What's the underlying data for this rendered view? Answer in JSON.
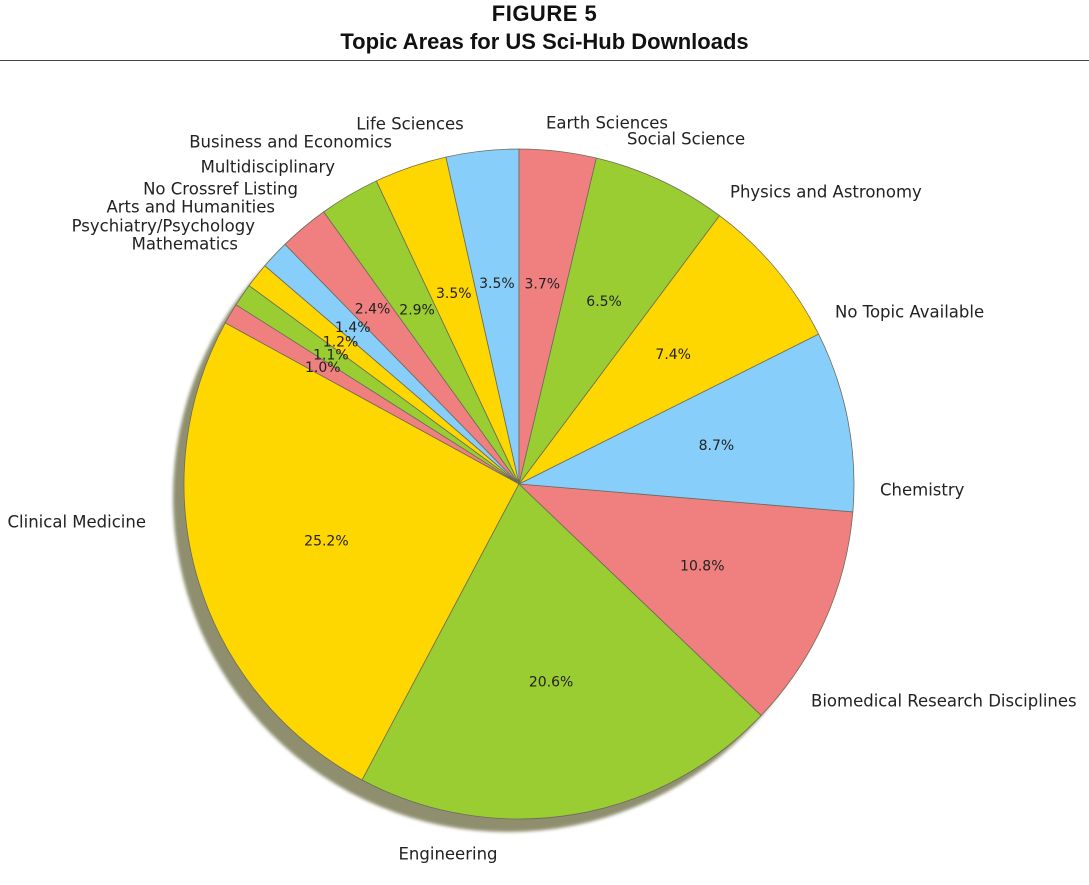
{
  "figure": {
    "label": "FIGURE 5",
    "title": "Topic Areas for US Sci-Hub Downloads"
  },
  "chart_data": {
    "type": "pie",
    "start_angle_deg": 90,
    "direction": "counterclockwise",
    "shadow": true,
    "slices": [
      {
        "label": "Earth Sciences",
        "value": 3.5,
        "pct_label": "3.5%",
        "color": "#87CEFA"
      },
      {
        "label": "Life Sciences",
        "value": 3.5,
        "pct_label": "3.5%",
        "color": "#FFD700"
      },
      {
        "label": "Business and Economics",
        "value": 2.9,
        "pct_label": "2.9%",
        "color": "#9ACD32"
      },
      {
        "label": "Multidisciplinary",
        "value": 2.4,
        "pct_label": "2.4%",
        "color": "#F08080"
      },
      {
        "label": "No Crossref Listing",
        "value": 1.4,
        "pct_label": "1.4%",
        "color": "#87CEFA"
      },
      {
        "label": "Arts and Humanities",
        "value": 1.2,
        "pct_label": "1.2%",
        "color": "#FFD700"
      },
      {
        "label": "Psychiatry/Psychology",
        "value": 1.1,
        "pct_label": "1.1%",
        "color": "#9ACD32"
      },
      {
        "label": "Mathematics",
        "value": 1.0,
        "pct_label": "1.0%",
        "color": "#F08080"
      },
      {
        "label": "Clinical Medicine",
        "value": 25.2,
        "pct_label": "25.2%",
        "color": "#FFD700"
      },
      {
        "label": "Engineering",
        "value": 20.6,
        "pct_label": "20.6%",
        "color": "#9ACD32"
      },
      {
        "label": "Biomedical Research Disciplines",
        "value": 10.8,
        "pct_label": "10.8%",
        "color": "#F08080"
      },
      {
        "label": "Chemistry",
        "value": 8.7,
        "pct_label": "8.7%",
        "color": "#87CEFA"
      },
      {
        "label": "No Topic Available",
        "value": 7.4,
        "pct_label": "7.4%",
        "color": "#FFD700"
      },
      {
        "label": "Physics and Astronomy",
        "value": 6.5,
        "pct_label": "6.5%",
        "color": "#9ACD32"
      },
      {
        "label": "Social Science",
        "value": 3.7,
        "pct_label": "3.7%",
        "color": "#F08080"
      }
    ]
  }
}
